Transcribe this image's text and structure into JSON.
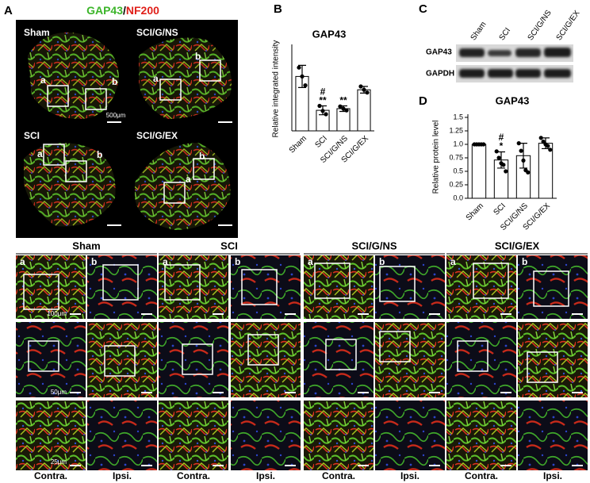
{
  "figure": {
    "panel_labels": [
      "A",
      "B",
      "C",
      "D"
    ],
    "panel_a": {
      "title": [
        "GAP43",
        "/",
        "NF200"
      ],
      "images": [
        {
          "name": "Sham",
          "regions": [
            "a",
            "b"
          ]
        },
        {
          "name": "SCI/G/NS",
          "regions": [
            "a",
            "b"
          ]
        },
        {
          "name": "SCI",
          "regions": [
            "a",
            "b"
          ]
        },
        {
          "name": "SCI/G/EX",
          "regions": [
            "a",
            "b"
          ]
        }
      ],
      "scale_bar": "500μm"
    },
    "panel_c": {
      "lanes": [
        "Sham",
        "SCI",
        "SCI/G/NS",
        "SCI/G/EX"
      ],
      "rows": [
        "GAP43",
        "GAPDH"
      ]
    },
    "grid": {
      "groups": [
        "Sham",
        "SCI",
        "SCI/G/NS",
        "SCI/G/EX"
      ],
      "regions": [
        "a",
        "b",
        "a",
        "b",
        "a",
        "b",
        "a",
        "b"
      ],
      "scale_bars": [
        "100μm",
        "50μm",
        "25μm"
      ],
      "sides": [
        "Contra.",
        "Ipsi.",
        "Contra.",
        "Ipsi.",
        "Contra.",
        "Ipsi.",
        "Contra.",
        "Ipsi."
      ]
    }
  },
  "chart_data": [
    {
      "type": "bar",
      "title": "GAP43",
      "ylabel": "Relative integrated intensity",
      "categories": [
        "Sham",
        "SCI",
        "SCI/G/NS",
        "SCI/G/EX"
      ],
      "values": [
        0.98,
        0.37,
        0.4,
        0.74
      ],
      "errors": [
        0.2,
        0.08,
        0.05,
        0.06
      ],
      "points": [
        [
          1.14,
          0.98,
          0.82
        ],
        [
          0.45,
          0.36,
          0.3
        ],
        [
          0.44,
          0.4,
          0.37
        ],
        [
          0.8,
          0.74,
          0.69
        ]
      ],
      "bar_annotations": [
        [],
        [
          "#",
          "**"
        ],
        [
          "**"
        ],
        []
      ],
      "color": "#ffffff",
      "ylim": [
        0,
        1.5
      ]
    },
    {
      "type": "bar",
      "title": "GAP43",
      "ylabel": "Relative protein level",
      "categories": [
        "Sham",
        "SCI",
        "SCI/G/NS",
        "SCI/G/EX"
      ],
      "values": [
        1.0,
        0.71,
        0.79,
        1.02
      ],
      "errors": [
        0.0,
        0.15,
        0.23,
        0.1
      ],
      "points": [
        [
          1.0,
          1.0,
          1.0,
          1.0,
          1.0
        ],
        [
          0.87,
          0.75,
          0.65,
          0.62,
          0.5
        ],
        [
          1.02,
          0.88,
          0.7,
          0.52,
          0.48
        ],
        [
          1.12,
          1.05,
          1.0,
          0.97,
          0.9
        ]
      ],
      "bar_annotations": [
        [],
        [
          "#",
          "*"
        ],
        [],
        []
      ],
      "color": "#ffffff",
      "ylim": [
        0,
        1.5
      ],
      "yticks": [
        {
          "value": 0,
          "label": "0.0"
        },
        0.25,
        0.5,
        0.75,
        {
          "value": 1,
          "label": "1.0"
        },
        1.25,
        1.5
      ]
    }
  ]
}
